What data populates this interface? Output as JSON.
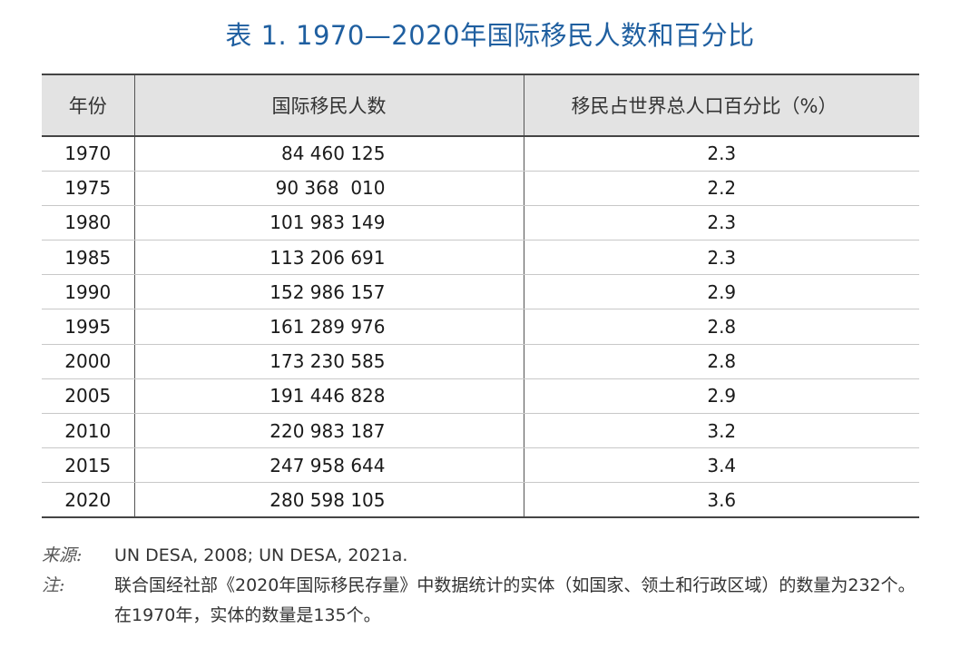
{
  "title": "表 1. 1970—2020年国际移民人数和百分比",
  "table": {
    "headers": [
      "年份",
      "国际移民人数",
      "移民占世界总人口百分比（%）"
    ],
    "rows": [
      [
        "1970",
        "84 460 125",
        "2.3"
      ],
      [
        "1975",
        "90 368  010",
        "2.2"
      ],
      [
        "1980",
        "101 983 149",
        "2.3"
      ],
      [
        "1985",
        "113 206 691",
        "2.3"
      ],
      [
        "1990",
        "152 986 157",
        "2.9"
      ],
      [
        "1995",
        "161 289 976",
        "2.8"
      ],
      [
        "2000",
        "173 230 585",
        "2.8"
      ],
      [
        "2005",
        "191 446 828",
        "2.9"
      ],
      [
        "2010",
        "220 983 187",
        "3.2"
      ],
      [
        "2015",
        "247 958 644",
        "3.4"
      ],
      [
        "2020",
        "280 598 105",
        "3.6"
      ]
    ]
  },
  "source": {
    "label": "来源:",
    "text": "UN DESA, 2008; UN DESA, 2021a."
  },
  "note": {
    "label": "注:",
    "text": "联合国经社部《2020年国际移民存量》中数据统计的实体（如国家、领土和行政区域）的数量为232个。在1970年，实体的数量是135个。"
  }
}
